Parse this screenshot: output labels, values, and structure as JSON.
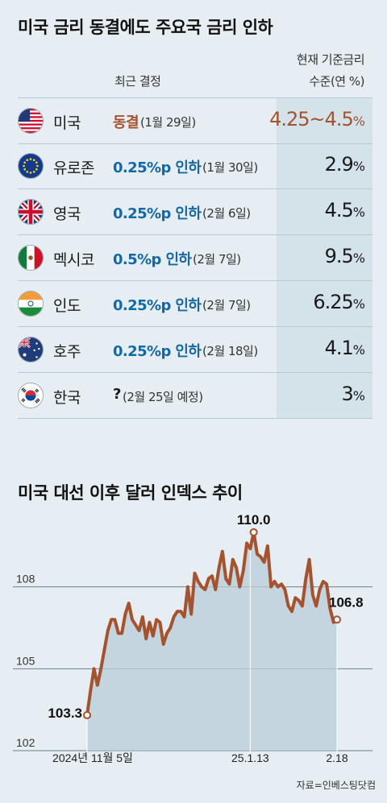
{
  "table": {
    "title": "미국 금리 동결에도 주요국 금리 인하",
    "header_decision": "최근 결정",
    "header_rate_line1": "현재 기준금리",
    "header_rate_line2": "수준(연 %)",
    "rows": [
      {
        "country": "미국",
        "flag": "us-flag-icon",
        "decision": "동결",
        "date": "(1월 29일)",
        "rate": "4.25~4.5",
        "unit": "%",
        "style": "brown"
      },
      {
        "country": "유로존",
        "flag": "eu-flag-icon",
        "decision": "0.25%p 인하",
        "date": "(1월 30일)",
        "rate": "2.9",
        "unit": "%",
        "style": "blue"
      },
      {
        "country": "영국",
        "flag": "uk-flag-icon",
        "decision": "0.25%p 인하",
        "date": "(2월 6일)",
        "rate": "4.5",
        "unit": "%",
        "style": "blue"
      },
      {
        "country": "멕시코",
        "flag": "mexico-flag-icon",
        "decision": "0.5%p 인하",
        "date": "(2월 7일)",
        "rate": "9.5",
        "unit": "%",
        "style": "blue"
      },
      {
        "country": "인도",
        "flag": "india-flag-icon",
        "decision": "0.25%p 인하",
        "date": "(2월 7일)",
        "rate": "6.25",
        "unit": "%",
        "style": "blue"
      },
      {
        "country": "호주",
        "flag": "australia-flag-icon",
        "decision": "0.25%p 인하",
        "date": "(2월 18일)",
        "rate": "4.1",
        "unit": "%",
        "style": "blue"
      },
      {
        "country": "한국",
        "flag": "korea-flag-icon",
        "decision": "?",
        "date": "(2월 25일 예정)",
        "rate": "3",
        "unit": "%",
        "style": "black"
      }
    ]
  },
  "colors": {
    "cut": "#1568a6",
    "hold": "#a4532e",
    "line": "#a4532e",
    "area": "#b9ccd8"
  },
  "chart_data": {
    "type": "area",
    "title": "미국 대선 이후 달러 인덱스 추이",
    "yticks": [
      102,
      105,
      108
    ],
    "ylim": [
      102,
      111.5
    ],
    "xticks": [
      {
        "index": 0,
        "label": "2024년 11월 5일"
      },
      {
        "index": 47,
        "label": "25.1.13"
      },
      {
        "index": 72,
        "label": "2.18"
      }
    ],
    "annotations": [
      {
        "index": 0,
        "label": "103.3"
      },
      {
        "index": 48,
        "label": "110.0"
      },
      {
        "index": 72,
        "label": "106.8"
      }
    ],
    "values": [
      103.3,
      104.2,
      105.0,
      104.4,
      105.0,
      105.7,
      106.4,
      106.8,
      106.8,
      106.3,
      106.3,
      107.0,
      107.4,
      106.8,
      106.6,
      106.4,
      106.9,
      106.1,
      106.7,
      106.2,
      106.8,
      106.7,
      105.9,
      106.3,
      106.5,
      106.9,
      107.1,
      107.1,
      106.9,
      108.0,
      107.0,
      108.5,
      108.2,
      108.0,
      107.9,
      108.3,
      108.4,
      107.9,
      108.7,
      109.3,
      108.3,
      108.1,
      109.0,
      108.7,
      108.0,
      108.6,
      109.6,
      109.4,
      110.0,
      109.2,
      109.1,
      108.9,
      109.5,
      108.0,
      108.2,
      108.0,
      108.1,
      107.9,
      107.3,
      107.1,
      107.6,
      107.5,
      107.3,
      108.3,
      109.0,
      107.7,
      107.3,
      107.9,
      108.2,
      108.1,
      107.2,
      106.7,
      106.8
    ],
    "source": "자료=인베스팅닷컴"
  }
}
